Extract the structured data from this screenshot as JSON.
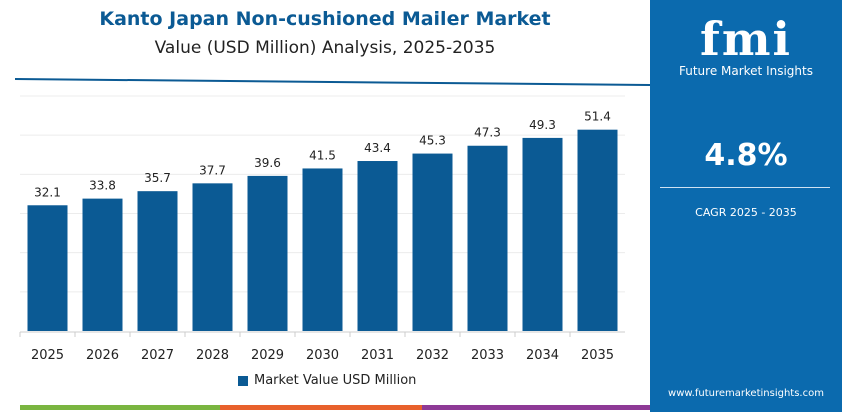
{
  "chart_data": {
    "type": "bar",
    "title": "Kanto Japan Non-cushioned Mailer Market",
    "subtitle": "Value (USD Million) Analysis, 2025-2035",
    "categories": [
      "2025",
      "2026",
      "2027",
      "2028",
      "2029",
      "2030",
      "2031",
      "2032",
      "2033",
      "2034",
      "2035"
    ],
    "series": [
      {
        "name": "Market Value USD Million",
        "values": [
          32.1,
          33.8,
          35.7,
          37.7,
          39.6,
          41.5,
          43.4,
          45.3,
          47.3,
          49.3,
          51.4
        ]
      }
    ],
    "ylim": [
      0,
      60
    ],
    "grid": true,
    "legend": "bottom",
    "bar_color": "#0b5a94"
  },
  "panel": {
    "logo": "fmi",
    "logo_subtitle": "Future Market Insights",
    "cagr_value": "4.8%",
    "cagr_label": "CAGR 2025 - 2035",
    "url": "www.futuremarketinsights.com",
    "color": "#0b6aae"
  }
}
